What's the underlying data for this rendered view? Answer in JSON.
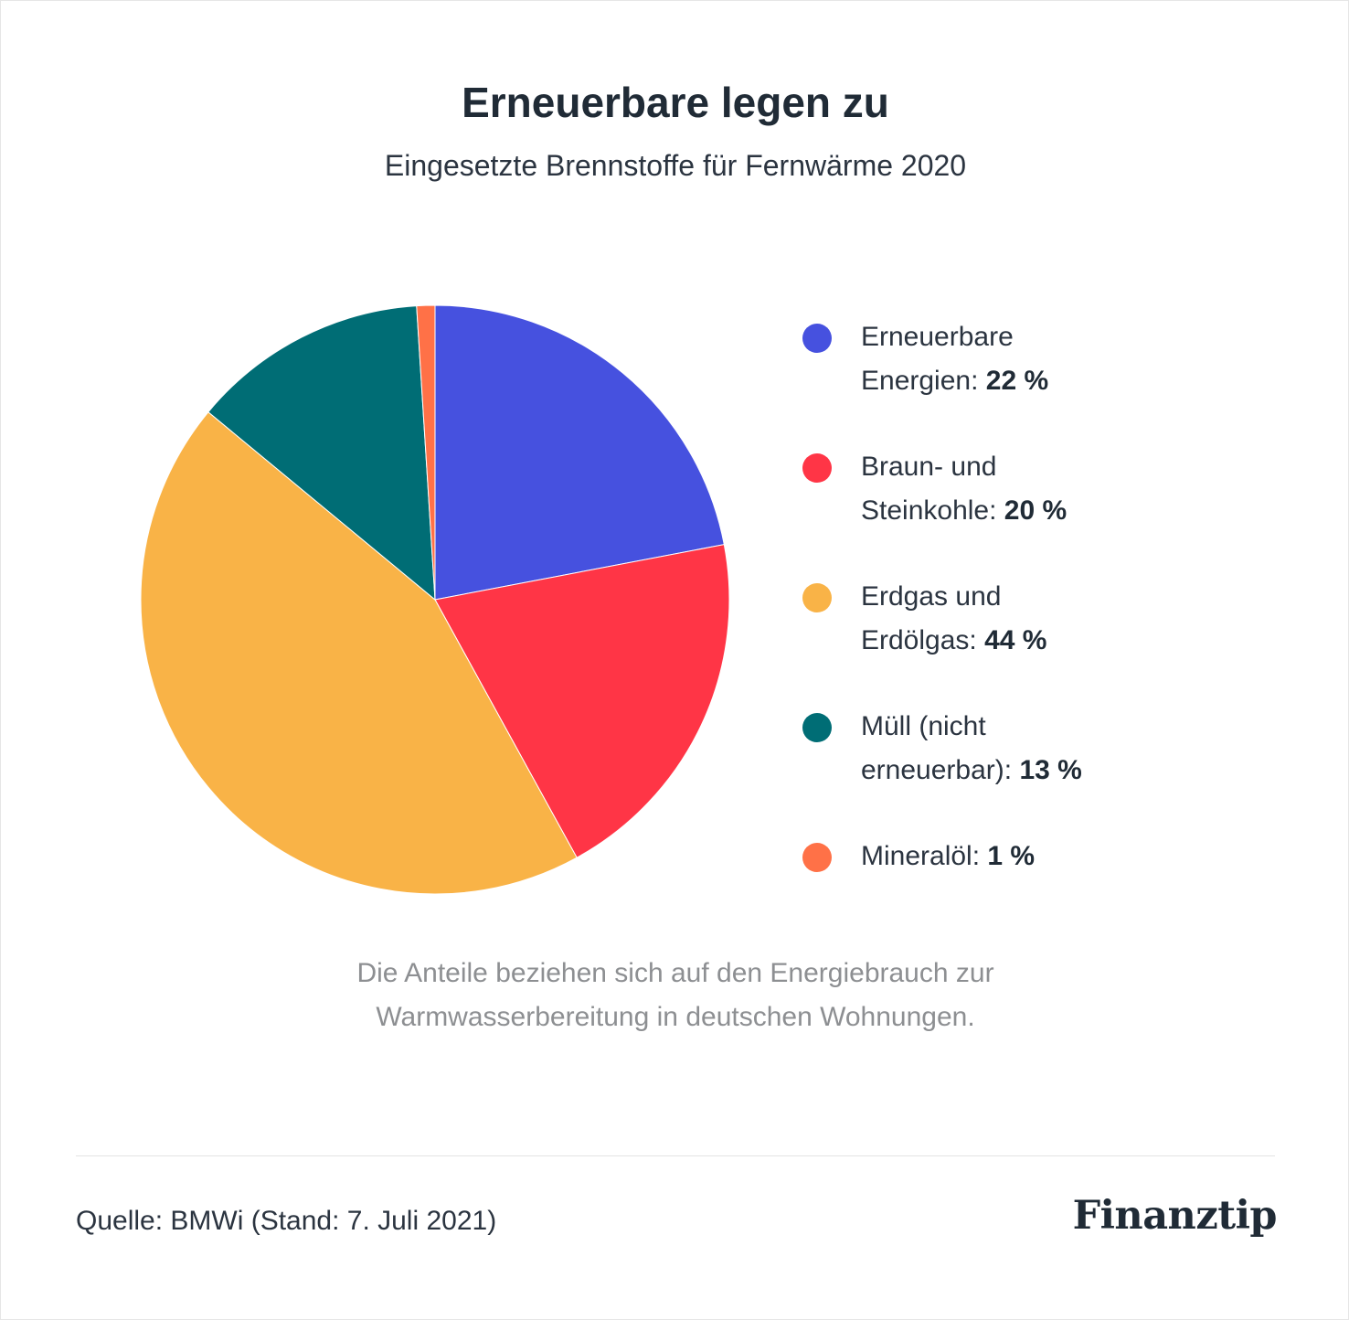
{
  "title": "Erneuerbare legen zu",
  "subtitle": "Eingesetzte Brennstoffe für Fernwärme 2020",
  "chart_data": {
    "type": "pie",
    "slices": [
      {
        "label": "Erneuerbare Energien:",
        "line1": "Erneuerbare",
        "line2": "Energien:",
        "value": 22,
        "value_label": "22 %",
        "color": "#4651df"
      },
      {
        "label": "Braun- und Steinkohle:",
        "line1": "Braun- und",
        "line2": "Steinkohle:",
        "value": 20,
        "value_label": "20 %",
        "color": "#ff3546"
      },
      {
        "label": "Erdgas und Erdölgas:",
        "line1": "Erdgas und",
        "line2": "Erdölgas:",
        "value": 44,
        "value_label": "44 %",
        "color": "#f9b347"
      },
      {
        "label": "Müll (nicht erneuerbar):",
        "line1": "Müll (nicht",
        "line2": "erneuerbar):",
        "value": 13,
        "value_label": "13 %",
        "color": "#006d75"
      },
      {
        "label": "Mineralöl:",
        "line1": "",
        "line2": "Mineralöl:",
        "value": 1,
        "value_label": "1 %",
        "color": "#ff7147"
      }
    ],
    "start_angle_deg": 0,
    "direction": "clockwise",
    "legend_position": "right"
  },
  "note": "Die Anteile beziehen sich auf den Energiebrauch zur Warmwasserbereitung in deutschen Wohnungen.",
  "source": "Quelle: BMWi (Stand: 7. Juli 2021)",
  "logo": "Finanztip"
}
